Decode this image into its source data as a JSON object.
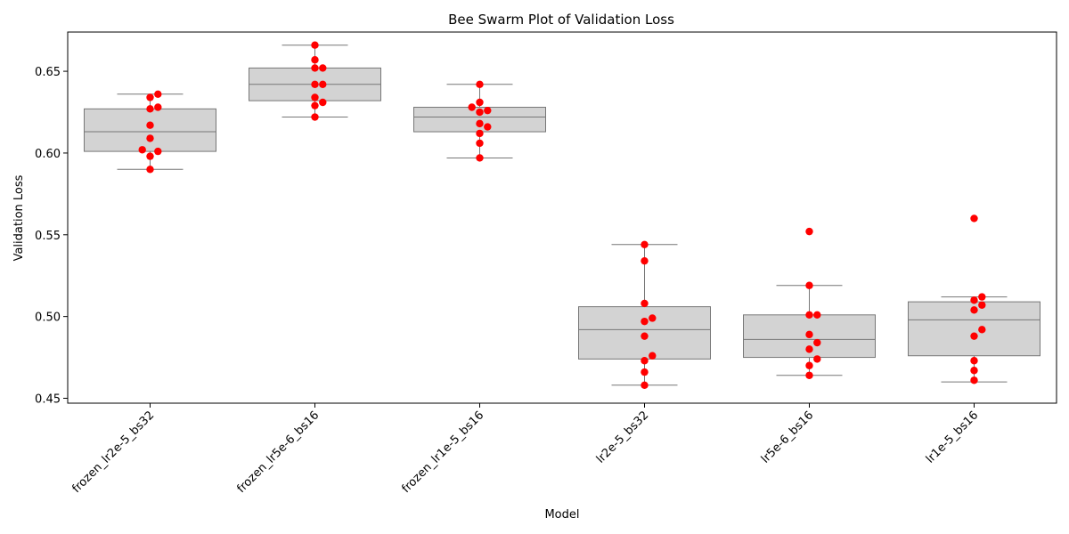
{
  "chart_data": {
    "type": "box",
    "title": "Bee Swarm Plot of Validation Loss",
    "xlabel": "Model",
    "ylabel": "Validation Loss",
    "ylim": [
      0.447,
      0.674
    ],
    "yticks": [
      "0.45",
      "0.50",
      "0.55",
      "0.60",
      "0.65"
    ],
    "categories": [
      "frozen_lr2e-5_bs32",
      "frozen_lr5e-6_bs16",
      "frozen_lr1e-5_bs16",
      "lr2e-5_bs32",
      "lr5e-6_bs16",
      "lr1e-5_bs16"
    ],
    "box_stats": [
      {
        "whislo": 0.59,
        "q1": 0.601,
        "med": 0.613,
        "q3": 0.627,
        "whishi": 0.636
      },
      {
        "whislo": 0.622,
        "q1": 0.632,
        "med": 0.642,
        "q3": 0.652,
        "whishi": 0.666
      },
      {
        "whislo": 0.597,
        "q1": 0.613,
        "med": 0.622,
        "q3": 0.628,
        "whishi": 0.642
      },
      {
        "whislo": 0.458,
        "q1": 0.474,
        "med": 0.492,
        "q3": 0.506,
        "whishi": 0.544
      },
      {
        "whislo": 0.464,
        "q1": 0.475,
        "med": 0.486,
        "q3": 0.501,
        "whishi": 0.519
      },
      {
        "whislo": 0.46,
        "q1": 0.476,
        "med": 0.498,
        "q3": 0.509,
        "whishi": 0.512
      }
    ],
    "points": [
      [
        0.636,
        0.634,
        0.628,
        0.627,
        0.617,
        0.609,
        0.602,
        0.601,
        0.598,
        0.59
      ],
      [
        0.666,
        0.657,
        0.652,
        0.652,
        0.642,
        0.642,
        0.634,
        0.631,
        0.629,
        0.622
      ],
      [
        0.642,
        0.631,
        0.628,
        0.626,
        0.625,
        0.618,
        0.616,
        0.612,
        0.606,
        0.597
      ],
      [
        0.544,
        0.534,
        0.508,
        0.499,
        0.497,
        0.488,
        0.476,
        0.473,
        0.466,
        0.458
      ],
      [
        0.552,
        0.519,
        0.501,
        0.501,
        0.489,
        0.484,
        0.48,
        0.474,
        0.47,
        0.464
      ],
      [
        0.56,
        0.512,
        0.51,
        0.507,
        0.504,
        0.492,
        0.488,
        0.473,
        0.467,
        0.461
      ]
    ],
    "colors": {
      "box_fill": "#d3d3d3",
      "box_edge": "#777777",
      "points": "#ff0000"
    },
    "grid": false
  }
}
